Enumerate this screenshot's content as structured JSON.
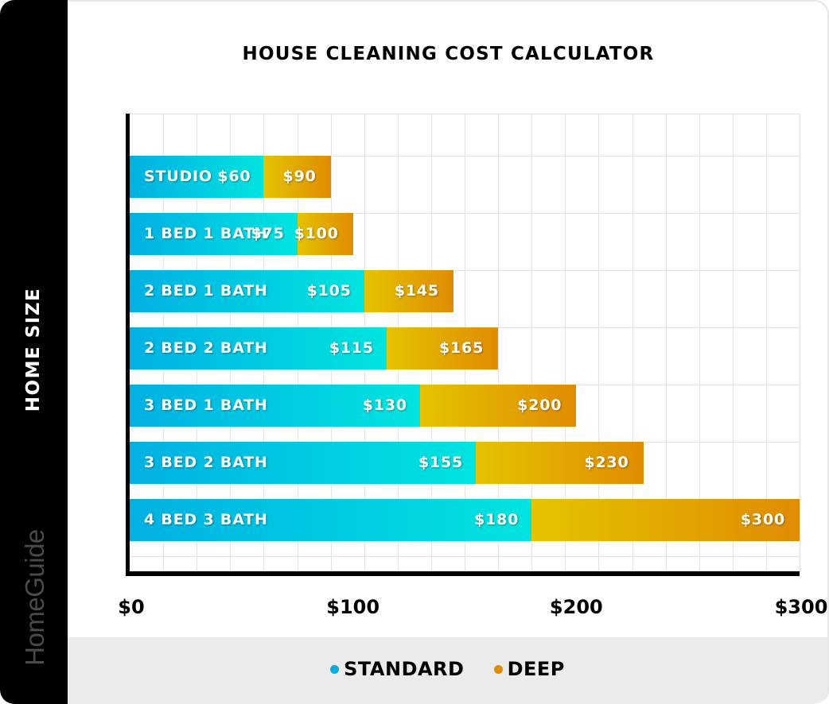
{
  "title": "HOUSE CLEANING COST CALCULATOR",
  "y_axis_title": "HOME SIZE",
  "brand": "HomeGuide",
  "x_ticks": [
    {
      "label": "$0",
      "value": 0
    },
    {
      "label": "$100",
      "value": 100
    },
    {
      "label": "$200",
      "value": 200
    },
    {
      "label": "$300",
      "value": 300
    }
  ],
  "legend": {
    "standard": {
      "label": "STANDARD",
      "color": "#00aee0"
    },
    "deep": {
      "label": "DEEP",
      "color": "#e08c00"
    }
  },
  "bars": [
    {
      "label": "STUDIO",
      "standard": 60,
      "deep": 90,
      "standard_label": "$60",
      "deep_label": "$90"
    },
    {
      "label": "1 BED 1 BATH",
      "standard": 75,
      "deep": 100,
      "standard_label": "$75",
      "deep_label": "$100"
    },
    {
      "label": "2 BED 1 BATH",
      "standard": 105,
      "deep": 145,
      "standard_label": "$105",
      "deep_label": "$145"
    },
    {
      "label": "2 BED 2 BATH",
      "standard": 115,
      "deep": 165,
      "standard_label": "$115",
      "deep_label": "$165"
    },
    {
      "label": "3 BED 1 BATH",
      "standard": 130,
      "deep": 200,
      "standard_label": "$130",
      "deep_label": "$200"
    },
    {
      "label": "3 BED 2 BATH",
      "standard": 155,
      "deep": 230,
      "standard_label": "$155",
      "deep_label": "$230"
    },
    {
      "label": "4 BED 3 BATH",
      "standard": 180,
      "deep": 300,
      "standard_label": "$180",
      "deep_label": "$300"
    }
  ],
  "chart_data": {
    "type": "bar",
    "orientation": "horizontal",
    "title": "HOUSE CLEANING COST CALCULATOR",
    "xlabel": "",
    "ylabel": "HOME SIZE",
    "categories": [
      "STUDIO",
      "1 BED 1 BATH",
      "2 BED 1 BATH",
      "2 BED 2 BATH",
      "3 BED 1 BATH",
      "3 BED 2 BATH",
      "4 BED 3 BATH"
    ],
    "series": [
      {
        "name": "STANDARD",
        "values": [
          60,
          75,
          105,
          115,
          130,
          155,
          180
        ],
        "color": "#00aee0"
      },
      {
        "name": "DEEP",
        "values": [
          90,
          100,
          145,
          165,
          200,
          230,
          300
        ],
        "color": "#e08c00"
      }
    ],
    "xlim": [
      0,
      300
    ],
    "x_ticks": [
      "$0",
      "$100",
      "$200",
      "$300"
    ],
    "grid": true,
    "legend_position": "bottom",
    "note": "Bars overlaid: deep segment extends from standard value to deep value"
  }
}
